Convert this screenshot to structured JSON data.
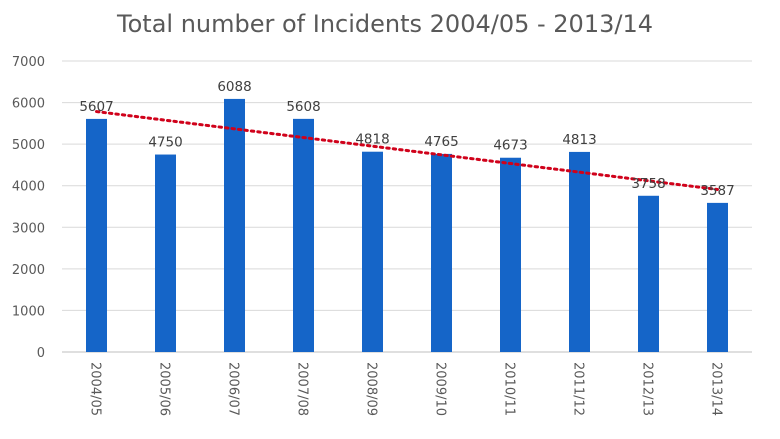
{
  "chart_data": {
    "type": "bar",
    "title": "Total number of Incidents 2004/05 - 2013/14",
    "categories": [
      "2004/05",
      "2005/06",
      "2006/07",
      "2007/08",
      "2008/09",
      "2009/10",
      "2010/11",
      "2011/12",
      "2012/13",
      "2013/14"
    ],
    "values": [
      5607,
      4750,
      6088,
      5608,
      4818,
      4765,
      4673,
      4813,
      3758,
      3587
    ],
    "data_labels": [
      "5607",
      "4750",
      "6088",
      "5608",
      "4818",
      "4765",
      "4673",
      "4813",
      "3758",
      "3587"
    ],
    "ylim": [
      0,
      7000
    ],
    "yticks": [
      "0",
      "1000",
      "2000",
      "3000",
      "4000",
      "5000",
      "6000",
      "7000"
    ],
    "grid": true,
    "trendline": "linear",
    "xlabel": "",
    "ylabel": "",
    "colors": {
      "bar": "#1565C8",
      "trendline": "#D0021B",
      "grid": "#D9D9D9"
    }
  }
}
